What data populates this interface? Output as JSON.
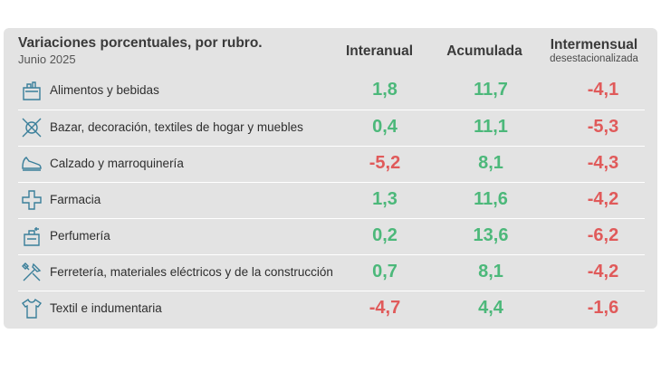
{
  "title": "Variaciones porcentuales, por rubro.",
  "subtitle": "Junio 2025",
  "columns": {
    "interanual": "Interanual",
    "acumulada": "Acumulada",
    "intermensual": "Intermensual",
    "intermensual_sub": "desestacionalizada"
  },
  "colors": {
    "positive": "#4cb87a",
    "negative": "#e05a5a",
    "icon": "#3a7f9a"
  },
  "chart_data": {
    "type": "table",
    "title": "Variaciones porcentuales, por rubro.",
    "subtitle": "Junio 2025",
    "columns": [
      "Interanual",
      "Acumulada",
      "Intermensual desestacionalizada"
    ],
    "rows": [
      {
        "rubro": "Alimentos y bebidas",
        "icon": "grocery-bag-icon",
        "interanual": "1,8",
        "acumulada": "11,7",
        "intermensual": "-4,1"
      },
      {
        "rubro": "Bazar, decoración, textiles de hogar y muebles",
        "icon": "home-decor-icon",
        "interanual": "0,4",
        "acumulada": "11,1",
        "intermensual": "-5,3"
      },
      {
        "rubro": "Calzado y marroquinería",
        "icon": "shoe-icon",
        "interanual": "-5,2",
        "acumulada": "8,1",
        "intermensual": "-4,3"
      },
      {
        "rubro": "Farmacia",
        "icon": "pharmacy-cross-icon",
        "interanual": "1,3",
        "acumulada": "11,6",
        "intermensual": "-4,2"
      },
      {
        "rubro": "Perfumería",
        "icon": "perfume-icon",
        "interanual": "0,2",
        "acumulada": "13,6",
        "intermensual": "-6,2"
      },
      {
        "rubro": "Ferretería, materiales eléctricos y de la construcción",
        "icon": "tools-icon",
        "interanual": "0,7",
        "acumulada": "8,1",
        "intermensual": "-4,2"
      },
      {
        "rubro": "Textil e indumentaria",
        "icon": "shirt-icon",
        "interanual": "-4,7",
        "acumulada": "4,4",
        "intermensual": "-1,6"
      }
    ]
  }
}
